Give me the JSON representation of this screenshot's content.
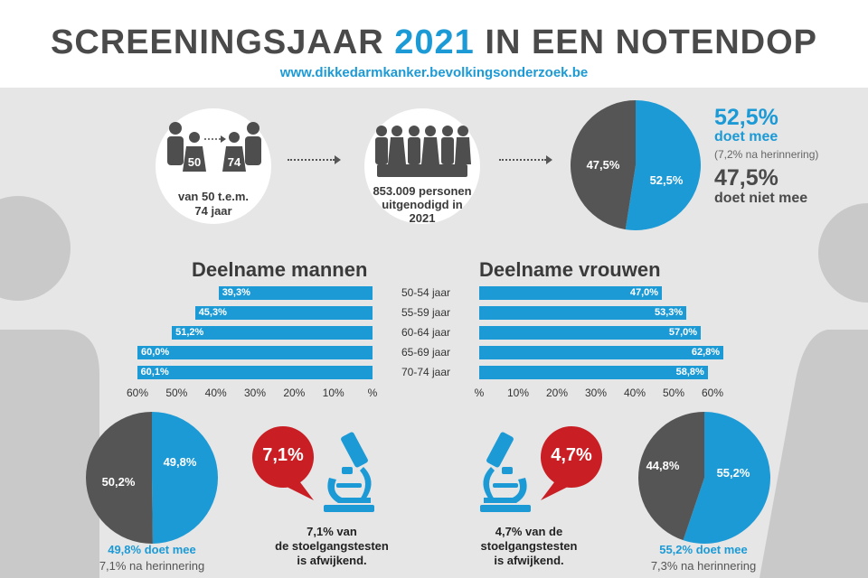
{
  "header": {
    "title_part1": "SCREENINGSJAAR",
    "title_year": "2021",
    "title_part2": "IN EEN NOTENDOP",
    "url": "www.dikkedarmkanker.bevolkingsonderzoek.be"
  },
  "top": {
    "age_from": "50",
    "age_to": "74",
    "age_caption_line1": "van 50 t.e.m.",
    "age_caption_line2": "74 jaar",
    "invited_line1": "853.009 personen",
    "invited_line2": "uitgenodigd in",
    "invited_line3": "2021",
    "pie_participate_label": "52,5%",
    "pie_not_label": "47,5%",
    "participate_pct": "52,5%",
    "participate_text": "doet mee",
    "reminder_text": "(7,2% na herinnering)",
    "not_pct": "47,5%",
    "not_text": "doet niet mee"
  },
  "men": {
    "heading": "Deelname mannen",
    "ticks": [
      "60%",
      "50%",
      "40%",
      "30%",
      "20%",
      "10%",
      "%"
    ],
    "pie_participate_label": "49,8%",
    "pie_not_label": "50,2%",
    "participate_caption": "49,8% doet mee",
    "reminder_caption": "7,1% na herinnering",
    "abnormal_bubble": "7,1%",
    "abnormal_line1": "7,1% van",
    "abnormal_line2": "de stoelgangstesten",
    "abnormal_line3": "is afwijkend."
  },
  "women": {
    "heading": "Deelname vrouwen",
    "ticks": [
      "%",
      "10%",
      "20%",
      "30%",
      "40%",
      "50%",
      "60%"
    ],
    "pie_participate_label": "55,2%",
    "pie_not_label": "44,8%",
    "participate_caption": "55,2% doet mee",
    "reminder_caption": "7,3% na herinnering",
    "abnormal_bubble": "4,7%",
    "abnormal_line1": "4,7% van de",
    "abnormal_line2": "stoelgangstesten",
    "abnormal_line3": "is afwijkend."
  },
  "colors": {
    "blue": "#1c9ad6",
    "dark_gray": "#555555",
    "red": "#c81e24",
    "band": "#e6e6e6"
  },
  "chart_data": [
    {
      "type": "pie",
      "labels": [
        "doet mee",
        "doet niet mee"
      ],
      "values": [
        52.5,
        47.5
      ],
      "value_labels": [
        "52,5%",
        "47,5%"
      ]
    },
    {
      "type": "bar",
      "orientation": "horizontal",
      "title": "Deelname mannen",
      "categories": [
        "50-54 jaar",
        "55-59 jaar",
        "60-64 jaar",
        "65-69 jaar",
        "70-74 jaar"
      ],
      "values": [
        39.3,
        45.3,
        51.2,
        60.0,
        60.1
      ],
      "value_labels": [
        "39,3%",
        "45,3%",
        "51,2%",
        "60,0%",
        "60,1%"
      ],
      "xlim": [
        0,
        60
      ],
      "direction": "right-to-left"
    },
    {
      "type": "bar",
      "orientation": "horizontal",
      "title": "Deelname vrouwen",
      "categories": [
        "50-54 jaar",
        "55-59 jaar",
        "60-64 jaar",
        "65-69 jaar",
        "70-74 jaar"
      ],
      "values": [
        47.0,
        53.3,
        57.0,
        62.8,
        58.8
      ],
      "value_labels": [
        "47,0%",
        "53,3%",
        "57,0%",
        "62,8%",
        "58,8%"
      ],
      "xlim": [
        0,
        60
      ],
      "direction": "left-to-right"
    },
    {
      "type": "pie",
      "labels": [
        "49,8% doet mee",
        ""
      ],
      "values": [
        49.8,
        50.2
      ],
      "value_labels": [
        "49,8%",
        "50,2%"
      ]
    },
    {
      "type": "pie",
      "labels": [
        "55,2% doet mee",
        ""
      ],
      "values": [
        55.2,
        44.8
      ],
      "value_labels": [
        "55,2%",
        "44,8%"
      ]
    }
  ]
}
